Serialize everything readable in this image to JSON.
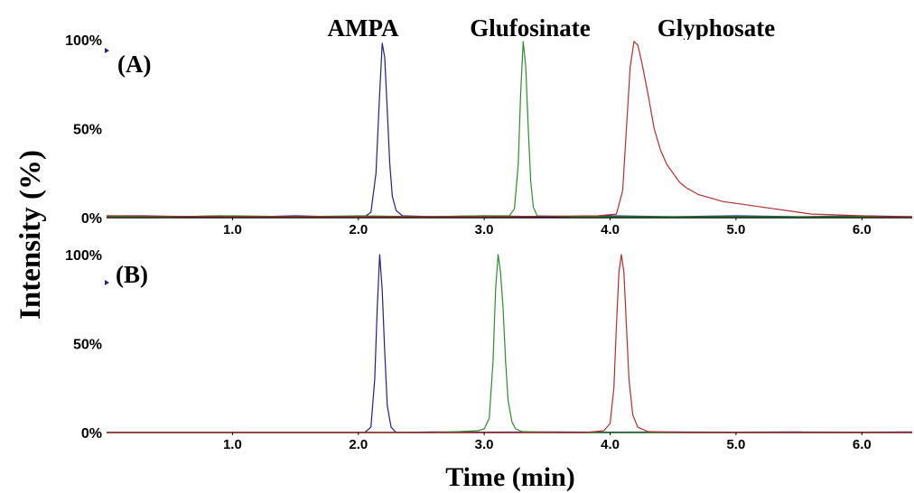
{
  "compound_labels": [
    "AMPA",
    "Glufosinate",
    "Glyphosate"
  ],
  "ylabel": "Intensity (%)",
  "xlabel": "Time (min)",
  "panel_a_label": "(A)",
  "panel_b_label": "(B)",
  "chart_data": [
    {
      "type": "line",
      "panel": "(A)",
      "xlim": [
        0,
        6.4
      ],
      "ylim": [
        0,
        100
      ],
      "x_ticks": [
        1.0,
        2.0,
        3.0,
        4.0,
        5.0,
        6.0
      ],
      "x_tick_labels": [
        "1.0",
        "2.0",
        "3.0",
        "4.0",
        "5.0",
        "6.0"
      ],
      "y_ticks": [
        0,
        50,
        100
      ],
      "y_tick_labels": [
        "0%",
        "50%",
        "100%"
      ],
      "grid": false,
      "series": [
        {
          "compound": "AMPA",
          "color": "#22227a",
          "points": [
            [
              0.0,
              1
            ],
            [
              0.3,
              1
            ],
            [
              0.6,
              0.5
            ],
            [
              0.9,
              1
            ],
            [
              1.2,
              0.5
            ],
            [
              1.5,
              1
            ],
            [
              1.8,
              0.5
            ],
            [
              2.05,
              0.5
            ],
            [
              2.1,
              3
            ],
            [
              2.14,
              25
            ],
            [
              2.17,
              70
            ],
            [
              2.19,
              98
            ],
            [
              2.21,
              90
            ],
            [
              2.23,
              60
            ],
            [
              2.25,
              30
            ],
            [
              2.27,
              12
            ],
            [
              2.3,
              4
            ],
            [
              2.35,
              1
            ],
            [
              2.6,
              0.5
            ],
            [
              3.0,
              1
            ],
            [
              3.5,
              0.5
            ],
            [
              4.0,
              1
            ],
            [
              4.5,
              0.5
            ],
            [
              5.0,
              1
            ],
            [
              5.5,
              0.5
            ],
            [
              6.0,
              1
            ],
            [
              6.4,
              0.5
            ]
          ]
        },
        {
          "compound": "Glufosinate",
          "color": "#2e8b2e",
          "points": [
            [
              0.0,
              0.5
            ],
            [
              0.5,
              0.5
            ],
            [
              1.0,
              1
            ],
            [
              1.5,
              0.5
            ],
            [
              2.0,
              1
            ],
            [
              2.5,
              0.5
            ],
            [
              3.0,
              1
            ],
            [
              3.2,
              1
            ],
            [
              3.24,
              5
            ],
            [
              3.27,
              30
            ],
            [
              3.29,
              70
            ],
            [
              3.31,
              99
            ],
            [
              3.33,
              85
            ],
            [
              3.35,
              50
            ],
            [
              3.37,
              20
            ],
            [
              3.39,
              6
            ],
            [
              3.42,
              1
            ],
            [
              3.7,
              0.5
            ],
            [
              4.2,
              0.5
            ],
            [
              5.0,
              0.5
            ],
            [
              6.4,
              0.5
            ]
          ]
        },
        {
          "compound": "Glyphosate",
          "color": "#b03030",
          "points": [
            [
              0.0,
              1
            ],
            [
              1.0,
              0.5
            ],
            [
              2.0,
              0.5
            ],
            [
              3.0,
              0.5
            ],
            [
              3.9,
              1
            ],
            [
              4.05,
              2
            ],
            [
              4.1,
              15
            ],
            [
              4.13,
              50
            ],
            [
              4.16,
              85
            ],
            [
              4.19,
              99
            ],
            [
              4.22,
              97
            ],
            [
              4.25,
              88
            ],
            [
              4.3,
              70
            ],
            [
              4.35,
              50
            ],
            [
              4.4,
              38
            ],
            [
              4.45,
              30
            ],
            [
              4.5,
              25
            ],
            [
              4.55,
              20
            ],
            [
              4.6,
              17
            ],
            [
              4.65,
              15
            ],
            [
              4.7,
              13
            ],
            [
              4.8,
              11
            ],
            [
              4.9,
              9
            ],
            [
              5.0,
              8
            ],
            [
              5.1,
              7
            ],
            [
              5.2,
              6
            ],
            [
              5.3,
              5
            ],
            [
              5.4,
              4
            ],
            [
              5.5,
              3
            ],
            [
              5.6,
              2
            ],
            [
              5.8,
              1.5
            ],
            [
              6.0,
              1
            ],
            [
              6.2,
              0.5
            ],
            [
              6.4,
              0.5
            ]
          ]
        }
      ]
    },
    {
      "type": "line",
      "panel": "(B)",
      "xlim": [
        0,
        6.4
      ],
      "ylim": [
        0,
        100
      ],
      "x_ticks": [
        1.0,
        2.0,
        3.0,
        4.0,
        5.0,
        6.0
      ],
      "x_tick_labels": [
        "1.0",
        "2.0",
        "3.0",
        "4.0",
        "5.0",
        "6.0"
      ],
      "y_ticks": [
        0,
        50,
        100
      ],
      "y_tick_labels": [
        "0%",
        "50%",
        "100%"
      ],
      "grid": false,
      "series": [
        {
          "compound": "AMPA",
          "color": "#22227a",
          "points": [
            [
              0.0,
              0
            ],
            [
              1.5,
              0
            ],
            [
              2.05,
              0
            ],
            [
              2.1,
              3
            ],
            [
              2.13,
              30
            ],
            [
              2.15,
              70
            ],
            [
              2.17,
              100
            ],
            [
              2.19,
              80
            ],
            [
              2.21,
              45
            ],
            [
              2.23,
              15
            ],
            [
              2.26,
              3
            ],
            [
              2.3,
              0
            ],
            [
              2.6,
              0.3
            ],
            [
              3.0,
              0.2
            ],
            [
              3.5,
              0.3
            ],
            [
              4.0,
              0.2
            ],
            [
              4.5,
              0.3
            ],
            [
              5.0,
              0.2
            ],
            [
              5.5,
              0.3
            ],
            [
              6.0,
              0.2
            ],
            [
              6.4,
              0.3
            ]
          ]
        },
        {
          "compound": "Glufosinate",
          "color": "#2e8b2e",
          "points": [
            [
              0.0,
              0
            ],
            [
              2.6,
              0
            ],
            [
              2.8,
              0.5
            ],
            [
              2.95,
              1
            ],
            [
              3.0,
              2
            ],
            [
              3.04,
              8
            ],
            [
              3.07,
              40
            ],
            [
              3.09,
              80
            ],
            [
              3.11,
              100
            ],
            [
              3.13,
              90
            ],
            [
              3.15,
              70
            ],
            [
              3.17,
              40
            ],
            [
              3.19,
              18
            ],
            [
              3.22,
              6
            ],
            [
              3.25,
              2
            ],
            [
              3.3,
              0.5
            ],
            [
              3.6,
              0
            ],
            [
              6.4,
              0
            ]
          ]
        },
        {
          "compound": "Glyphosate",
          "color": "#b03030",
          "points": [
            [
              0.0,
              0
            ],
            [
              3.8,
              0
            ],
            [
              3.95,
              1
            ],
            [
              4.0,
              5
            ],
            [
              4.03,
              25
            ],
            [
              4.05,
              60
            ],
            [
              4.07,
              90
            ],
            [
              4.09,
              100
            ],
            [
              4.11,
              90
            ],
            [
              4.13,
              60
            ],
            [
              4.15,
              30
            ],
            [
              4.18,
              10
            ],
            [
              4.22,
              3
            ],
            [
              4.3,
              0.5
            ],
            [
              4.6,
              0
            ],
            [
              6.4,
              0
            ]
          ]
        }
      ]
    }
  ]
}
